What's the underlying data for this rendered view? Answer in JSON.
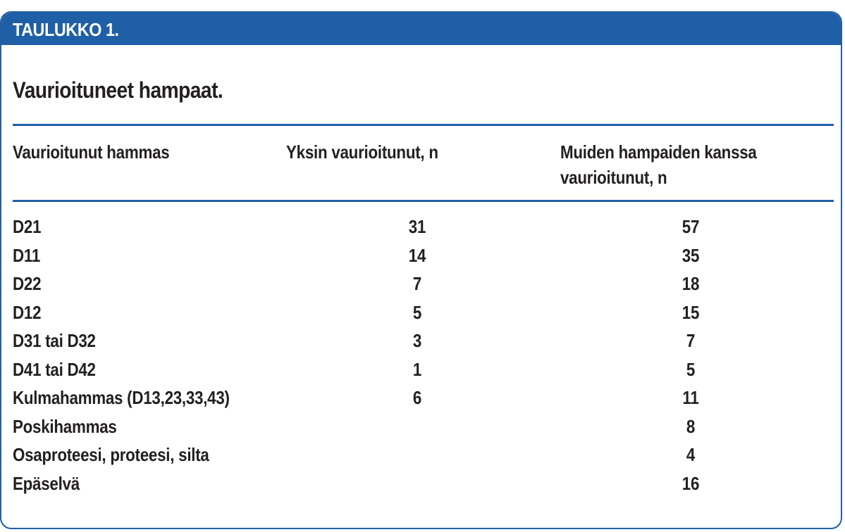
{
  "table": {
    "label": "TAULUKKO 1.",
    "title": "Vaurioituneet hampaat.",
    "columns": {
      "tooth": "Vaurioitunut hammas",
      "alone": "Yksin vaurioitunut, n",
      "with_others_line1": "Muiden hampaiden kanssa",
      "with_others_line2": "vaurioitunut, n"
    },
    "rows": [
      {
        "tooth": "D21",
        "alone": "31",
        "with_others": "57"
      },
      {
        "tooth": "D11",
        "alone": "14",
        "with_others": "35"
      },
      {
        "tooth": "D22",
        "alone": "7",
        "with_others": "18"
      },
      {
        "tooth": "D12",
        "alone": "5",
        "with_others": "15"
      },
      {
        "tooth": "D31 tai D32",
        "alone": "3",
        "with_others": "7"
      },
      {
        "tooth": "D41 tai D42",
        "alone": "1",
        "with_others": "5"
      },
      {
        "tooth": "Kulmahammas (D13,23,33,43)",
        "alone": "6",
        "with_others": "11"
      },
      {
        "tooth": "Poskihammas",
        "alone": "",
        "with_others": "8"
      },
      {
        "tooth": "Osaproteesi, proteesi, silta",
        "alone": "",
        "with_others": "4"
      },
      {
        "tooth": "Epäselvä",
        "alone": "",
        "with_others": "16"
      }
    ]
  },
  "colors": {
    "accent": "#1f5fa6",
    "text": "#231f20"
  }
}
